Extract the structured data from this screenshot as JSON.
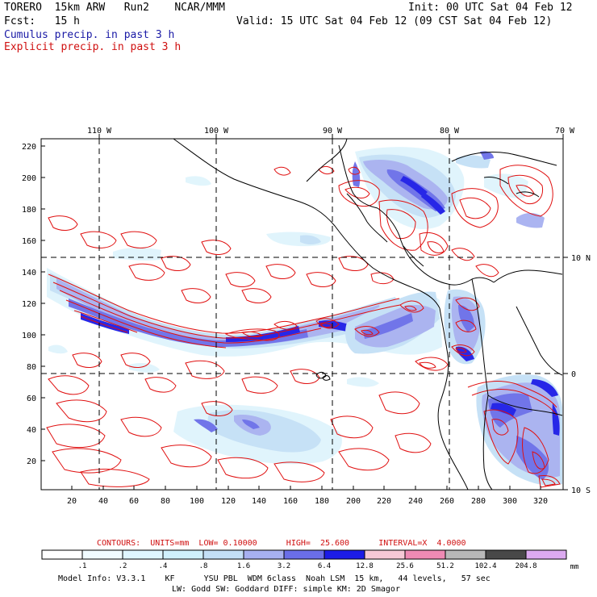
{
  "header": {
    "model": "TORERO  15km ARW   Run2    NCAR/MMM",
    "init": "Init: 00 UTC Sat 04 Feb 12",
    "fcst_label": "Fcst:   15 h",
    "valid": "Valid: 15 UTC Sat 04 Feb 12 (09 CST Sat 04 Feb 12)",
    "cumulus": "Cumulus precip. in past 3 h",
    "explicit": "Explicit precip. in past 3 h"
  },
  "map": {
    "lon_labels": [
      "110 W",
      "100 W",
      "90 W",
      "80 W",
      "70 W"
    ],
    "lat_labels": [
      "10 N",
      "0",
      "10 S"
    ],
    "y_ticks": [
      "220",
      "200",
      "180",
      "160",
      "140",
      "120",
      "100",
      "80",
      "60",
      "40",
      "20"
    ],
    "x_ticks": [
      "20",
      "40",
      "60",
      "80",
      "100",
      "120",
      "140",
      "160",
      "180",
      "200",
      "220",
      "240",
      "260",
      "280",
      "300",
      "320"
    ]
  },
  "legend": {
    "contours_text": "CONTOURS:  UNITS=mm  LOW= 0.10000      HIGH=  25.600      INTERVAL=X  4.0000",
    "levels": [
      ".1",
      ".2",
      ".4",
      ".8",
      "1.6",
      "3.2",
      "6.4",
      "12.8",
      "25.6",
      "51.2",
      "102.4",
      "204.8"
    ],
    "colors": [
      "#ffffff",
      "#f0fbff",
      "#e0f6ff",
      "#d0f0fc",
      "#c4e0f6",
      "#a7b0f0",
      "#6a6ee8",
      "#1c1ce6",
      "#f6c8d6",
      "#ee8ab4",
      "#b8b8b8",
      "#484848",
      "#dcaaf0"
    ],
    "units": "mm"
  },
  "footer": {
    "line1": "Model Info: V3.3.1    KF      YSU PBL  WDM 6class  Noah LSM  15 km,   44 levels,   57 sec",
    "line2": "LW: Godd SW: Goddard DIFF: simple KM: 2D Smagor"
  }
}
